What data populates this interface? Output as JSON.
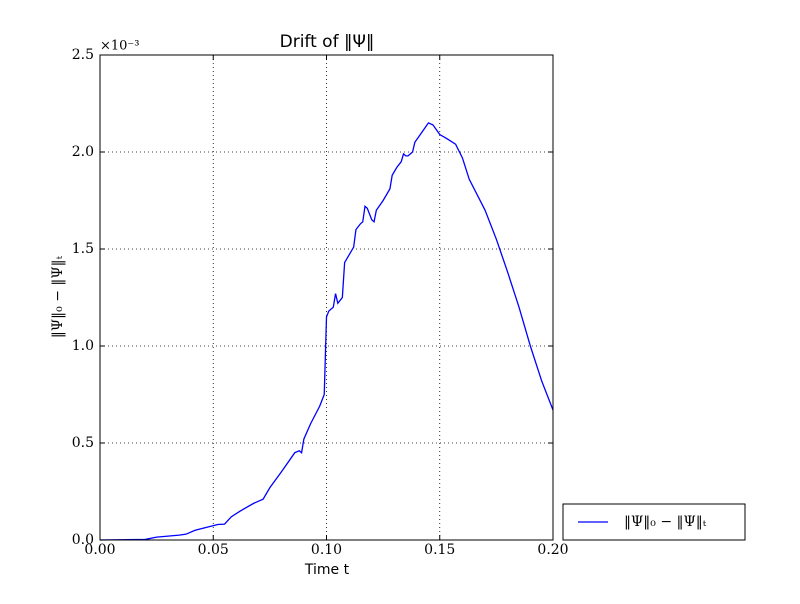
{
  "chart_data": {
    "type": "line",
    "title": "Drift of ‖Ψ‖",
    "x_label": "Time t",
    "y_label": "‖Ψ‖₀ − ‖Ψ‖ₜ",
    "y_offset_label": "×10⁻³",
    "x": [
      0,
      0.02,
      0.025,
      0.035,
      0.038,
      0.042,
      0.047,
      0.052,
      0.055,
      0.058,
      0.062,
      0.068,
      0.07,
      0.072,
      0.075,
      0.08,
      0.086,
      0.088,
      0.089,
      0.09,
      0.093,
      0.097,
      0.099,
      0.1,
      0.101,
      0.102,
      0.103,
      0.104,
      0.105,
      0.107,
      0.108,
      0.11,
      0.112,
      0.113,
      0.115,
      0.116,
      0.117,
      0.118,
      0.12,
      0.121,
      0.122,
      0.125,
      0.128,
      0.129,
      0.131,
      0.133,
      0.134,
      0.135,
      0.136,
      0.138,
      0.139,
      0.142,
      0.145,
      0.147,
      0.15,
      0.153,
      0.157,
      0.16,
      0.163,
      0.17,
      0.175,
      0.18,
      0.185,
      0.19,
      0.195,
      0.2
    ],
    "series": [
      {
        "name": "‖Ψ‖₀ − ‖Ψ‖ₜ",
        "color": "#0000ff",
        "values": [
          0,
          0.003,
          0.015,
          0.025,
          0.03,
          0.05,
          0.065,
          0.08,
          0.082,
          0.12,
          0.15,
          0.19,
          0.2,
          0.21,
          0.27,
          0.35,
          0.45,
          0.46,
          0.45,
          0.52,
          0.6,
          0.69,
          0.75,
          1.15,
          1.18,
          1.19,
          1.2,
          1.27,
          1.22,
          1.25,
          1.43,
          1.47,
          1.51,
          1.6,
          1.63,
          1.64,
          1.72,
          1.71,
          1.65,
          1.64,
          1.7,
          1.75,
          1.81,
          1.88,
          1.92,
          1.95,
          1.99,
          1.98,
          1.98,
          2.0,
          2.05,
          2.1,
          2.15,
          2.14,
          2.09,
          2.07,
          2.04,
          1.97,
          1.86,
          1.7,
          1.55,
          1.38,
          1.2,
          1.0,
          0.82,
          0.67
        ]
      }
    ],
    "xlim": [
      0,
      0.2
    ],
    "xticks": [
      {
        "value": 0,
        "label": "0.00"
      },
      0.05,
      {
        "value": 0.1,
        "label": "0.10"
      },
      0.15,
      {
        "value": 0.2,
        "label": "0.20"
      }
    ],
    "ylim": [
      0,
      2.5
    ],
    "yticks": [
      {
        "value": 0,
        "label": "0.0"
      },
      0.5,
      {
        "value": 1,
        "label": "1.0"
      },
      1.5,
      {
        "value": 2,
        "label": "2.0"
      },
      2.5
    ],
    "grid": true,
    "legend": "lower right outside"
  }
}
